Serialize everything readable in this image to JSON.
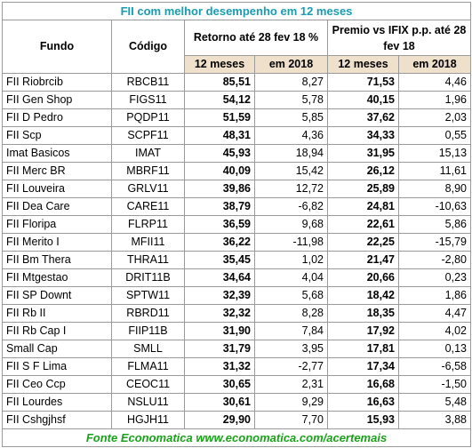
{
  "title": "FII com melhor desempenho em 12 meses",
  "table": {
    "headers": [
      "Fundo",
      "Código",
      "Retorno até 28 fev 18 %",
      "Premio vs IFIX p.p. até 28 fev 18"
    ],
    "subheaders": [
      "12 meses",
      "em 2018",
      "12 meses",
      "em 2018"
    ],
    "rows": [
      [
        "FII Riobrcib",
        "RBCB11",
        "85,51",
        "8,27",
        "71,53",
        "4,46"
      ],
      [
        "FII Gen Shop",
        "FIGS11",
        "54,12",
        "5,78",
        "40,15",
        "1,96"
      ],
      [
        "FII D Pedro",
        "PQDP11",
        "51,59",
        "5,85",
        "37,62",
        "2,03"
      ],
      [
        "FII Scp",
        "SCPF11",
        "48,31",
        "4,36",
        "34,33",
        "0,55"
      ],
      [
        "Imat Basicos",
        "IMAT",
        "45,93",
        "18,94",
        "31,95",
        "15,13"
      ],
      [
        "FII Merc BR",
        "MBRF11",
        "40,09",
        "15,42",
        "26,12",
        "11,61"
      ],
      [
        "FII Louveira",
        "GRLV11",
        "39,86",
        "12,72",
        "25,89",
        "8,90"
      ],
      [
        "FII Dea Care",
        "CARE11",
        "38,79",
        "-6,82",
        "24,81",
        "-10,63"
      ],
      [
        "FII Floripa",
        "FLRP11",
        "36,59",
        "9,68",
        "22,61",
        "5,86"
      ],
      [
        "FII Merito I",
        "MFII11",
        "36,22",
        "-11,98",
        "22,25",
        "-15,79"
      ],
      [
        "FII Bm Thera",
        "THRA11",
        "35,45",
        "1,02",
        "21,47",
        "-2,80"
      ],
      [
        "FII Mtgestao",
        "DRIT11B",
        "34,64",
        "4,04",
        "20,66",
        "0,23"
      ],
      [
        "FII SP Downt",
        "SPTW11",
        "32,39",
        "5,68",
        "18,42",
        "1,86"
      ],
      [
        "FII Rb II",
        "RBRD11",
        "32,32",
        "8,28",
        "18,35",
        "4,47"
      ],
      [
        "FII Rb Cap I",
        "FIIP11B",
        "31,90",
        "7,84",
        "17,92",
        "4,02"
      ],
      [
        "Small Cap",
        "SMLL",
        "31,79",
        "3,95",
        "17,81",
        "0,13"
      ],
      [
        "FII S F Lima",
        "FLMA11",
        "31,32",
        "-2,77",
        "17,34",
        "-6,58"
      ],
      [
        "FII Ceo Ccp",
        "CEOC11",
        "30,65",
        "2,31",
        "16,68",
        "-1,50"
      ],
      [
        "FII Lourdes",
        "NSLU11",
        "30,61",
        "9,29",
        "16,63",
        "5,48"
      ],
      [
        "FII Cshgjhsf",
        "HGJH11",
        "29,90",
        "7,70",
        "15,93",
        "3,88"
      ]
    ]
  },
  "footer": "Fonte Economatica www.economatica.com/acertemais"
}
